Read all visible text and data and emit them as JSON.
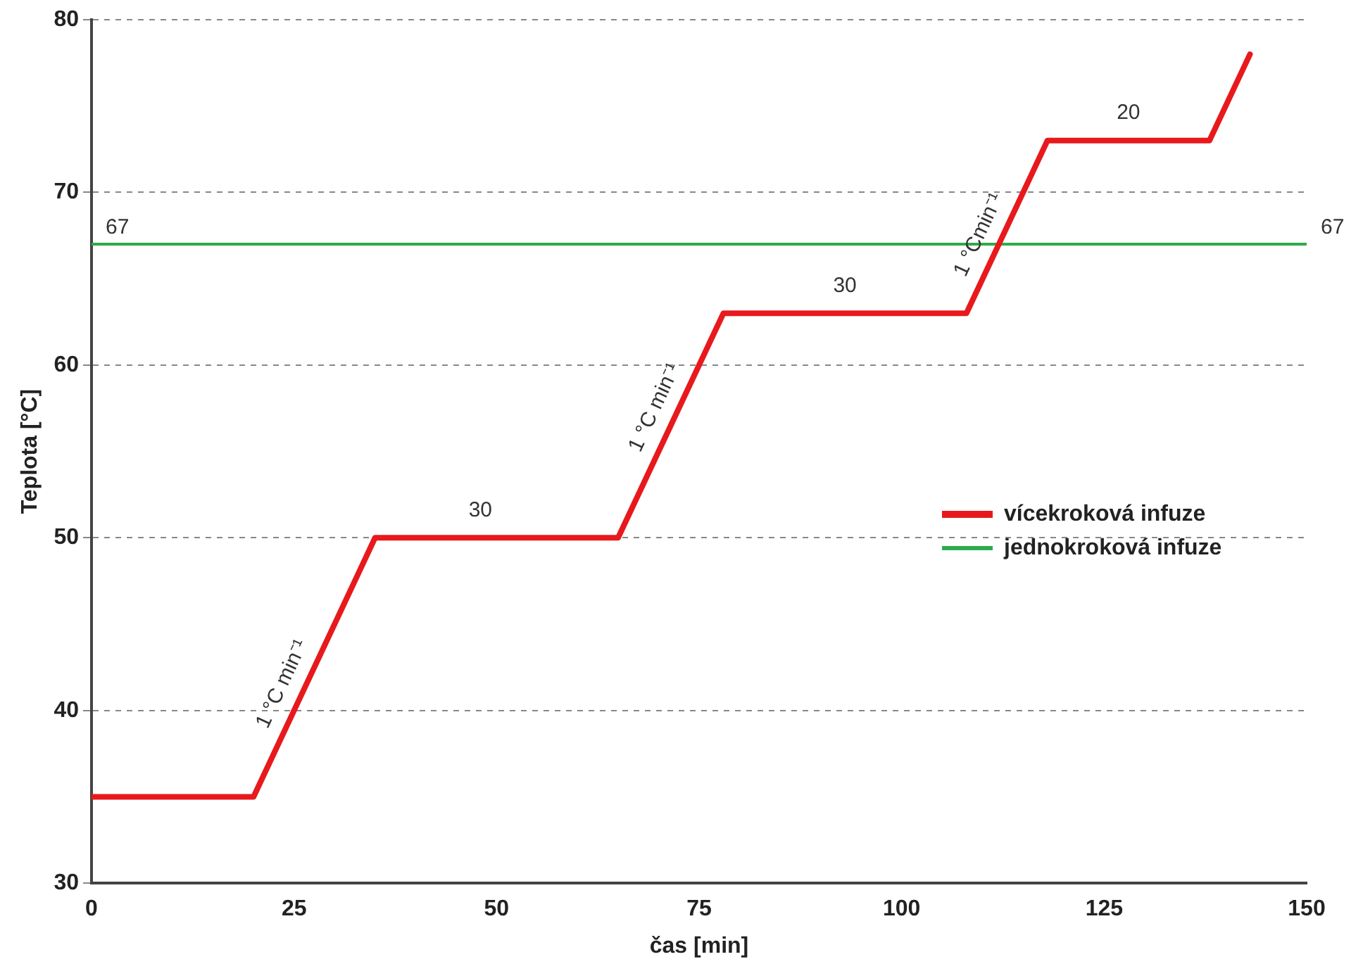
{
  "chart_data": {
    "type": "line",
    "xlabel": "čas [min]",
    "ylabel": "Teplota [°C]",
    "xlim": [
      0,
      150
    ],
    "xticks": [
      0,
      25,
      50,
      75,
      100,
      125,
      150
    ],
    "ylim": [
      30,
      80
    ],
    "yticks": [
      30,
      40,
      50,
      60,
      70,
      80
    ],
    "grid": "y",
    "legend": "right",
    "marker": "none",
    "line_style": "solid",
    "series": [
      {
        "name": "vícekroková infuze",
        "color": "#e8191c",
        "x": [
          0,
          20,
          35,
          65,
          78,
          108,
          118,
          138,
          143
        ],
        "values": [
          35,
          35,
          50,
          50,
          63,
          63,
          73,
          73,
          78
        ]
      },
      {
        "name": "jednokroková infuze",
        "color": "#2eab4a",
        "x": [
          0,
          150
        ],
        "values": [
          67,
          67
        ]
      }
    ],
    "annotations": [
      {
        "text": "67",
        "x": 0,
        "y": 67
      },
      {
        "text": "67",
        "x": 150,
        "y": 67
      },
      {
        "text": "1 °C min⁻¹",
        "x": 26,
        "y": 41
      },
      {
        "text": "30",
        "x": 48,
        "y": 50
      },
      {
        "text": "1 °C min⁻¹",
        "x": 72,
        "y": 57
      },
      {
        "text": "30",
        "x": 93,
        "y": 63
      },
      {
        "text": "1 °Cmin⁻¹",
        "x": 112,
        "y": 67
      },
      {
        "text": "20",
        "x": 128,
        "y": 73
      }
    ]
  }
}
